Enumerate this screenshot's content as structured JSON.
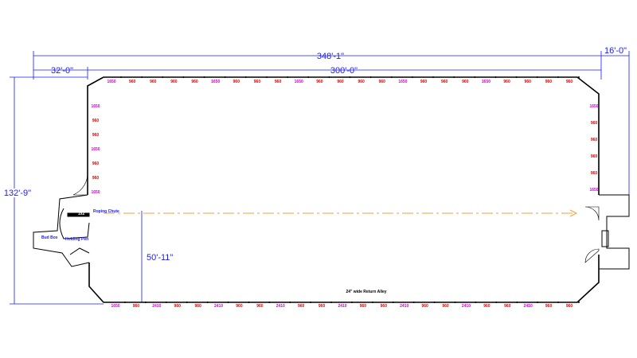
{
  "dimensions": {
    "overall_length": "348'-1\"",
    "right_extension": "16'-0\"",
    "left_extension": "32'-0\"",
    "arena_length": "300'-0\"",
    "overall_width": "132'-9\"",
    "chute_offset": "50'-11\""
  },
  "areas": {
    "roping_chute": "Roping Chute",
    "chute_tag": "1x2",
    "bud_box": "Bud Box",
    "holding_pen": "Holding Pen",
    "return_alley": "24\" wide Return Alley"
  },
  "panels": {
    "top": [
      "1650",
      "960",
      "960",
      "960",
      "960",
      "1650",
      "960",
      "960",
      "960",
      "1650",
      "960",
      "960",
      "960",
      "960",
      "1650",
      "960",
      "960",
      "960",
      "1650",
      "960",
      "960",
      "960",
      "960"
    ],
    "bottom": [
      "1650",
      "960",
      "2410",
      "960",
      "960",
      "2410",
      "960",
      "960",
      "2410",
      "960",
      "960",
      "2410",
      "960",
      "960",
      "2410",
      "960",
      "960",
      "2410",
      "960",
      "960",
      "2410",
      "960",
      "960"
    ],
    "left": [
      "1650",
      "960",
      "960",
      "1650",
      "960",
      "960",
      "1650"
    ],
    "right": [
      "1650",
      "960",
      "960",
      "960",
      "960",
      "1650"
    ]
  }
}
